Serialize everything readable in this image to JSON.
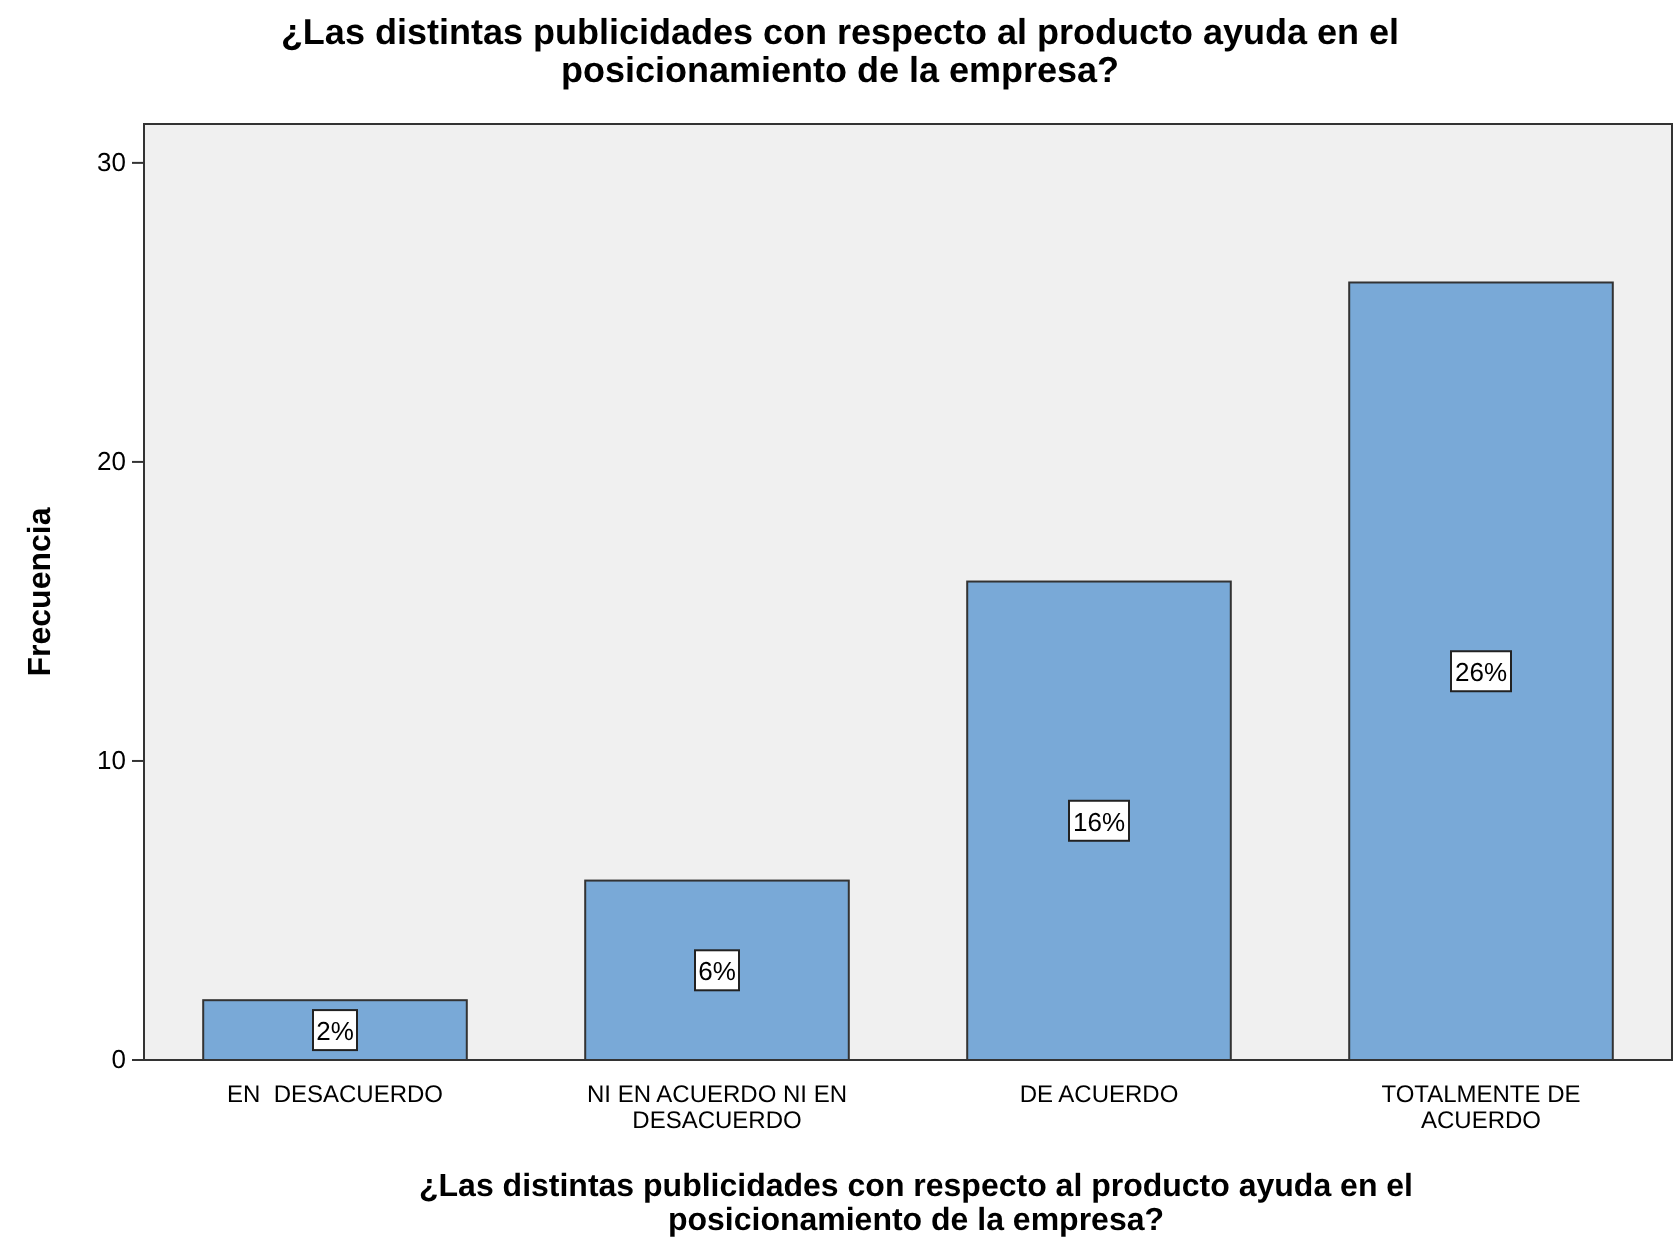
{
  "chart_data": {
    "type": "bar",
    "title": "¿Las distintas publicidades con respecto al producto ayuda en el posicionamiento de la empresa?",
    "xlabel": "¿Las distintas publicidades con respecto al producto ayuda en el posicionamiento de la empresa?",
    "ylabel": "Frecuencia",
    "categories": [
      "EN  DESACUERDO",
      "NI EN ACUERDO NI EN DESACUERDO",
      "DE ACUERDO",
      "TOTALMENTE DE ACUERDO"
    ],
    "values": [
      2,
      6,
      16,
      26
    ],
    "value_labels": [
      "2%",
      "6%",
      "16%",
      "26%"
    ],
    "color": "#79a9d7",
    "ylim": [
      0,
      31.3
    ],
    "yticks": [
      0,
      10,
      20,
      30
    ],
    "grid": false
  }
}
